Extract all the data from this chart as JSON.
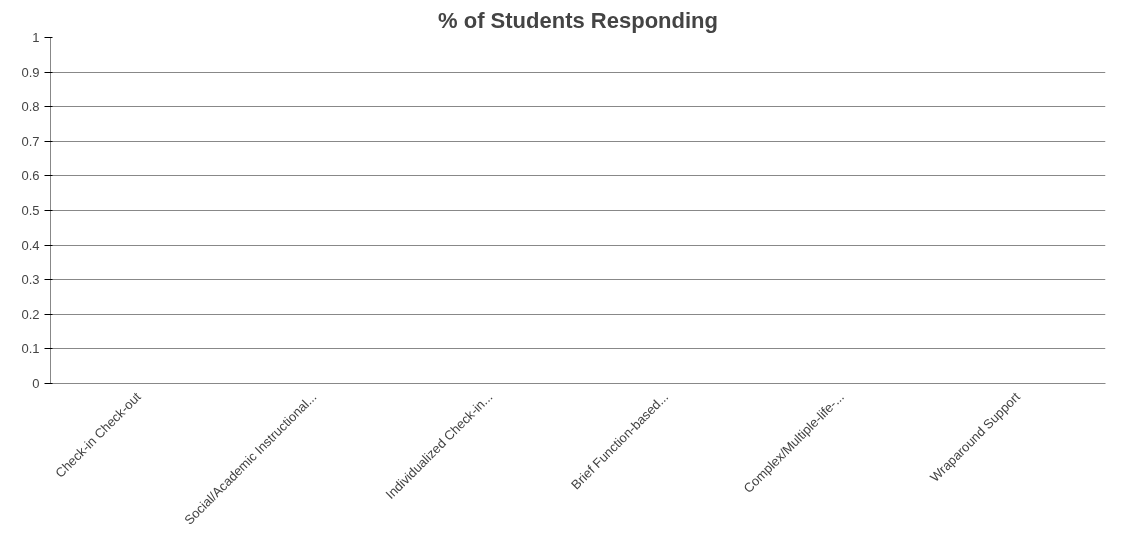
{
  "chart_data": {
    "type": "bar",
    "title": "% of Students Responding",
    "categories": [
      "Check-in Check-out",
      "Social/Academic Instructional...",
      "Individualized Check-in...",
      "Brief Function-based...",
      "Complex/Multiple-life-...",
      "Wraparound Support"
    ],
    "values": [
      0,
      0,
      0,
      0,
      0,
      0
    ],
    "ylim": [
      0,
      1
    ],
    "yticks": [
      0,
      0.1,
      0.2,
      0.3,
      0.4,
      0.5,
      0.6,
      0.7,
      0.8,
      0.9,
      1
    ],
    "grid": "y"
  }
}
